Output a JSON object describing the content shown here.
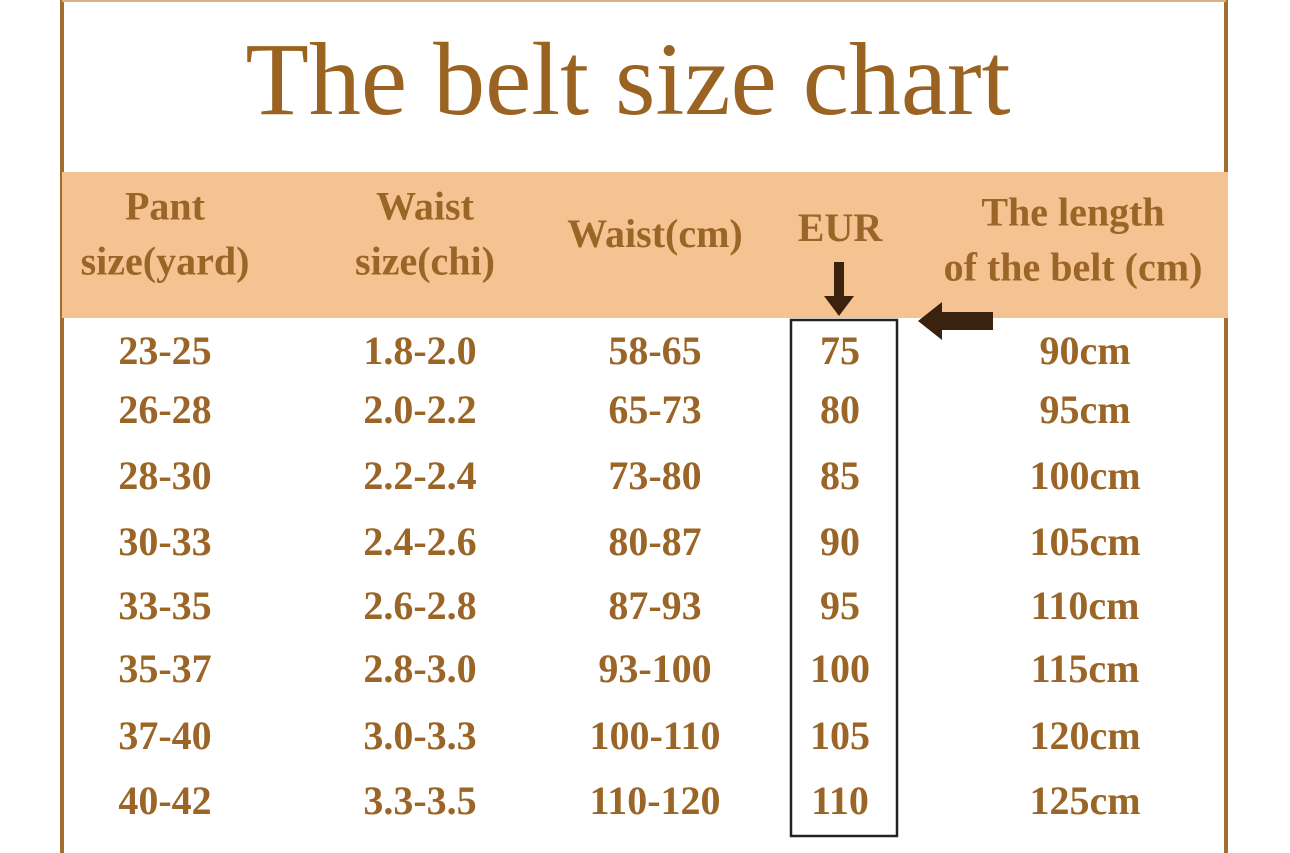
{
  "title": "The belt size chart",
  "table": {
    "header": [
      [
        "Pant",
        "size(yard)"
      ],
      [
        "Waist",
        "size(chi)"
      ],
      [
        "Waist(cm)"
      ],
      [
        "EUR"
      ],
      [
        "The length",
        "of the belt (cm)"
      ]
    ],
    "rows": [
      [
        "23-25",
        "1.8-2.0",
        "58-65",
        "75",
        "90cm"
      ],
      [
        "26-28",
        "2.0-2.2",
        "65-73",
        "80",
        "95cm"
      ],
      [
        "28-30",
        "2.2-2.4",
        "73-80",
        "85",
        "100cm"
      ],
      [
        "30-33",
        "2.4-2.6",
        "80-87",
        "90",
        "105cm"
      ],
      [
        "33-35",
        "2.6-2.8",
        "87-93",
        "95",
        "110cm"
      ],
      [
        "35-37",
        "2.8-3.0",
        "93-100",
        "100",
        "115cm"
      ],
      [
        "37-40",
        "3.0-3.3",
        "100-110",
        "105",
        "120cm"
      ],
      [
        "40-42",
        "3.3-3.5",
        "110-120",
        "110",
        "125cm"
      ]
    ]
  }
}
